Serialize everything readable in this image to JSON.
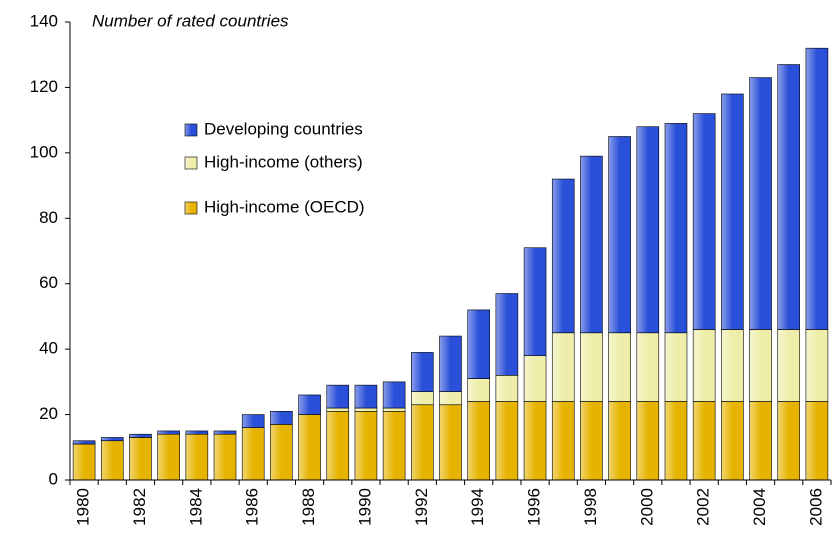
{
  "chart_data": {
    "type": "bar",
    "stacked": true,
    "title": "Number of rated countries",
    "categories": [
      "1980",
      null,
      "1982",
      null,
      "1984",
      null,
      "1986",
      null,
      "1988",
      null,
      "1990",
      null,
      "1992",
      null,
      "1994",
      null,
      "1996",
      null,
      "1998",
      null,
      "2000",
      null,
      "2002",
      null,
      "2004",
      null,
      "2006"
    ],
    "series": [
      {
        "name": "High-income (OECD)",
        "color": "#e6b400",
        "values": [
          11,
          12,
          13,
          14,
          14,
          14,
          16,
          17,
          20,
          21,
          21,
          21,
          23,
          23,
          24,
          24,
          24,
          24,
          24,
          24,
          24,
          24,
          24,
          24,
          24,
          24,
          24
        ]
      },
      {
        "name": "High-income (others)",
        "color": "#eeeeaa",
        "values": [
          0,
          0,
          0,
          0,
          0,
          0,
          0,
          0,
          0,
          1,
          1,
          1,
          4,
          4,
          7,
          8,
          14,
          21,
          21,
          21,
          21,
          21,
          22,
          22,
          22,
          22,
          22
        ]
      },
      {
        "name": "Developing countries",
        "color": "#2a4fd8",
        "values": [
          1,
          1,
          1,
          1,
          1,
          1,
          4,
          4,
          6,
          7,
          7,
          8,
          12,
          17,
          21,
          25,
          33,
          47,
          54,
          60,
          63,
          64,
          66,
          72,
          77,
          81,
          86
        ]
      }
    ],
    "ylim": [
      0,
      140
    ],
    "yticks": [
      0,
      20,
      40,
      60,
      80,
      100,
      120,
      140
    ],
    "grid": false
  }
}
